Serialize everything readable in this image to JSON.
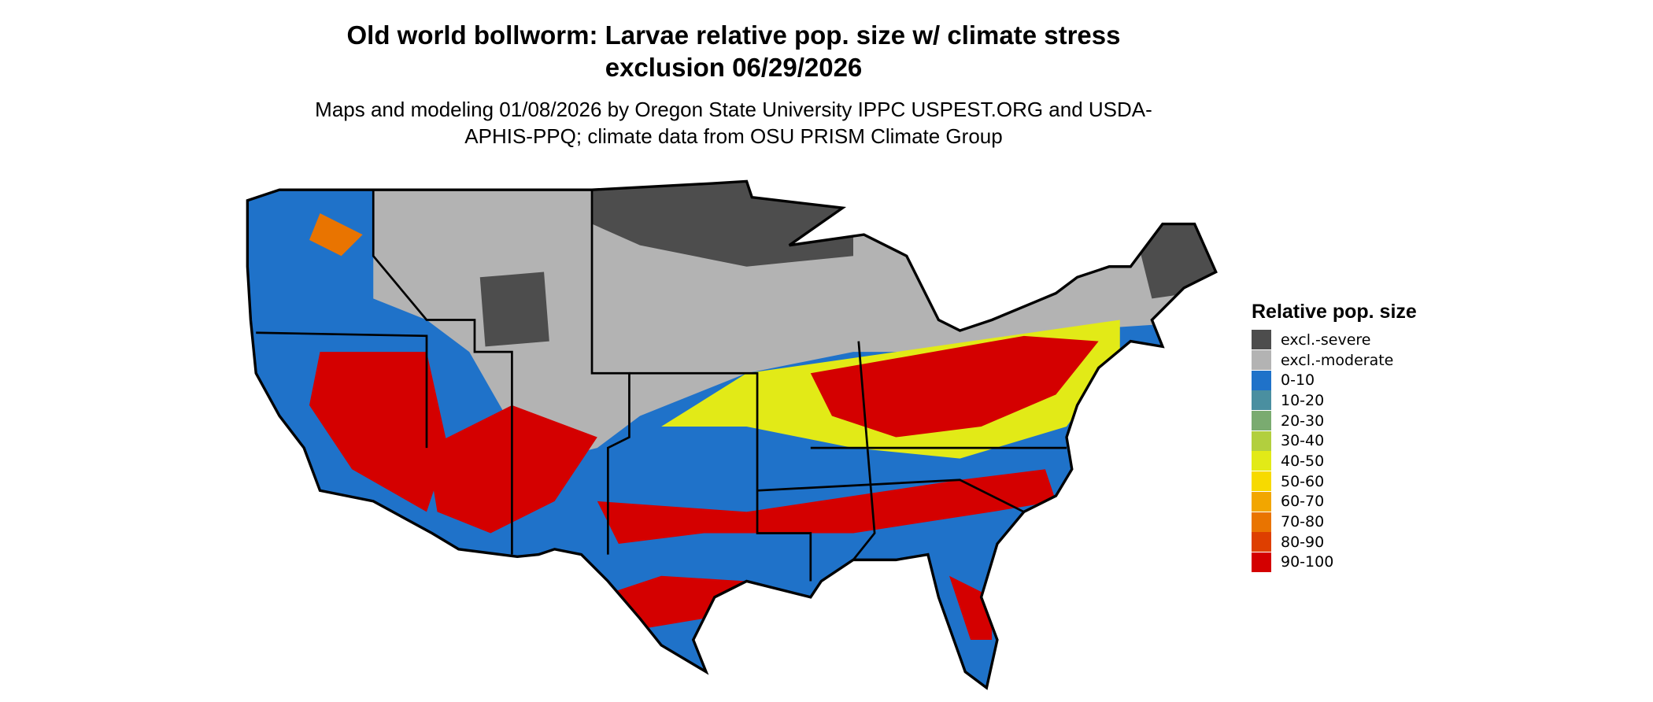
{
  "title": "Old world bollworm: Larvae relative pop. size w/ climate stress exclusion 06/29/2026",
  "subtitle": "Maps and modeling 01/08/2026 by Oregon State University IPPC USPEST.ORG and USDA-APHIS-PPQ; climate data from OSU PRISM Climate Group",
  "legend": {
    "title": "Relative pop. size",
    "items": [
      {
        "label": "excl.-severe",
        "color": "#4d4d4d"
      },
      {
        "label": "excl.-moderate",
        "color": "#b3b3b3"
      },
      {
        "label": "0-10",
        "color": "#1f72c9"
      },
      {
        "label": "10-20",
        "color": "#4a8fa0"
      },
      {
        "label": "20-30",
        "color": "#7aab70"
      },
      {
        "label": "30-40",
        "color": "#b2cf3e"
      },
      {
        "label": "40-50",
        "color": "#e2ea17"
      },
      {
        "label": "50-60",
        "color": "#f7da00"
      },
      {
        "label": "60-70",
        "color": "#f2a600"
      },
      {
        "label": "70-80",
        "color": "#e97400"
      },
      {
        "label": "80-90",
        "color": "#de3f00"
      },
      {
        "label": "90-100",
        "color": "#d40000"
      }
    ]
  }
}
